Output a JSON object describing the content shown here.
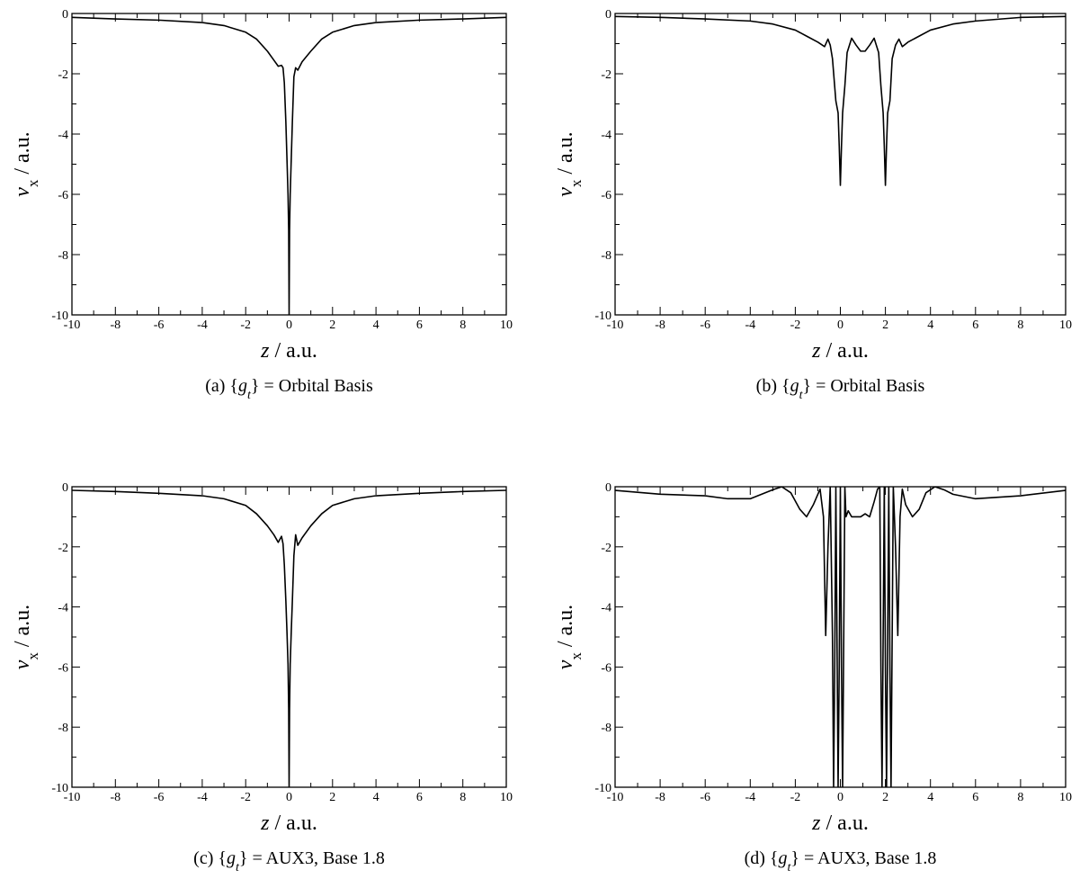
{
  "chart_data": [
    {
      "type": "line",
      "caption": "(a) {g_t} = Orbital Basis",
      "xlabel": "z / a.u.",
      "ylabel": "v_x / a.u.",
      "xlim": [
        -10,
        10
      ],
      "ylim": [
        -10,
        0
      ],
      "xticks": [
        "-10",
        "-8",
        "-6",
        "-4",
        "-2",
        "0",
        "2",
        "4",
        "6",
        "8",
        "10"
      ],
      "yticks": [
        "0",
        "-2",
        "-4",
        "-6",
        "-8",
        "-10"
      ],
      "grid": false,
      "series": [
        {
          "x": [
            -10,
            -8,
            -6,
            -4,
            -3,
            -2,
            -1.5,
            -1,
            -0.7,
            -0.5,
            -0.35,
            -0.28,
            -0.22,
            -0.15,
            -0.1,
            -0.05,
            -0.02,
            0,
            0.02,
            0.05,
            0.1,
            0.15,
            0.22,
            0.3,
            0.4,
            0.6,
            1,
            1.5,
            2,
            3,
            4,
            6,
            8,
            10
          ],
          "y": [
            -0.13,
            -0.18,
            -0.22,
            -0.3,
            -0.4,
            -0.62,
            -0.85,
            -1.25,
            -1.55,
            -1.75,
            -1.72,
            -1.8,
            -2.3,
            -3.6,
            -4.8,
            -6,
            -7.2,
            -10,
            -7.2,
            -6,
            -4.8,
            -3.6,
            -2.1,
            -1.8,
            -1.88,
            -1.6,
            -1.25,
            -0.85,
            -0.62,
            -0.4,
            -0.3,
            -0.22,
            -0.18,
            -0.13
          ]
        }
      ]
    },
    {
      "type": "line",
      "caption": "(b) {g_t} = Orbital Basis",
      "xlabel": "z / a.u.",
      "ylabel": "v_x / a.u.",
      "xlim": [
        -10,
        10
      ],
      "ylim": [
        -10,
        0
      ],
      "xticks": [
        "-10",
        "-8",
        "-6",
        "-4",
        "-2",
        "0",
        "2",
        "4",
        "6",
        "8",
        "10"
      ],
      "yticks": [
        "0",
        "-2",
        "-4",
        "-6",
        "-8",
        "-10"
      ],
      "grid": false,
      "series": [
        {
          "x": [
            -10,
            -8,
            -6,
            -4,
            -3,
            -2,
            -1.5,
            -1,
            -0.7,
            -0.55,
            -0.45,
            -0.35,
            -0.2,
            -0.1,
            -0.05,
            0,
            0.05,
            0.1,
            0.2,
            0.3,
            0.5,
            0.7,
            0.9,
            1.1,
            1.3,
            1.5,
            1.7,
            1.8,
            1.9,
            1.95,
            2,
            2.05,
            2.1,
            2.2,
            2.3,
            2.45,
            2.6,
            2.75,
            3,
            3.5,
            4,
            5,
            6,
            8,
            10
          ],
          "y": [
            -0.1,
            -0.13,
            -0.18,
            -0.25,
            -0.35,
            -0.55,
            -0.75,
            -0.95,
            -1.1,
            -0.85,
            -1.05,
            -1.5,
            -2.9,
            -3.3,
            -4.4,
            -5.7,
            -4.4,
            -3.3,
            -2.4,
            -1.3,
            -0.82,
            -1.05,
            -1.25,
            -1.25,
            -1.05,
            -0.82,
            -1.3,
            -2.4,
            -3.3,
            -4.4,
            -5.7,
            -4.4,
            -3.3,
            -2.9,
            -1.5,
            -1.05,
            -0.85,
            -1.1,
            -0.95,
            -0.75,
            -0.55,
            -0.35,
            -0.25,
            -0.13,
            -0.1
          ]
        }
      ]
    },
    {
      "type": "line",
      "caption": "(c) {g_t} = AUX3, Base 1.8",
      "xlabel": "z / a.u.",
      "ylabel": "v_x / a.u.",
      "xlim": [
        -10,
        10
      ],
      "ylim": [
        -10,
        0
      ],
      "xticks": [
        "-10",
        "-8",
        "-6",
        "-4",
        "-2",
        "0",
        "2",
        "4",
        "6",
        "8",
        "10"
      ],
      "yticks": [
        "0",
        "-2",
        "-4",
        "-6",
        "-8",
        "-10"
      ],
      "grid": false,
      "series": [
        {
          "x": [
            -10,
            -8,
            -6,
            -4,
            -3,
            -2,
            -1.5,
            -1,
            -0.7,
            -0.5,
            -0.35,
            -0.28,
            -0.22,
            -0.15,
            -0.1,
            -0.05,
            -0.02,
            0,
            0.02,
            0.05,
            0.1,
            0.15,
            0.22,
            0.3,
            0.4,
            0.6,
            1,
            1.5,
            2,
            3,
            4,
            6,
            8,
            10
          ],
          "y": [
            -0.12,
            -0.16,
            -0.22,
            -0.3,
            -0.4,
            -0.62,
            -0.9,
            -1.3,
            -1.6,
            -1.85,
            -1.65,
            -1.9,
            -2.6,
            -3.8,
            -4.8,
            -5.9,
            -7.4,
            -10,
            -7.4,
            -5.9,
            -4.8,
            -3.8,
            -2.3,
            -1.6,
            -1.95,
            -1.7,
            -1.3,
            -0.9,
            -0.62,
            -0.4,
            -0.3,
            -0.22,
            -0.16,
            -0.12
          ]
        }
      ]
    },
    {
      "type": "line",
      "caption": "(d) {g_t} = AUX3, Base 1.8",
      "xlabel": "z / a.u.",
      "ylabel": "v_x / a.u.",
      "xlim": [
        -10,
        10
      ],
      "ylim": [
        -10,
        0
      ],
      "xticks": [
        "-10",
        "-8",
        "-6",
        "-4",
        "-2",
        "0",
        "2",
        "4",
        "6",
        "8",
        "10"
      ],
      "yticks": [
        "0",
        "-2",
        "-4",
        "-6",
        "-8",
        "-10"
      ],
      "grid": false,
      "series": [
        {
          "x": [
            -10,
            -8,
            -6,
            -5,
            -4,
            -3.5,
            -3,
            -2.6,
            -2.2,
            -1.8,
            -1.5,
            -1.2,
            -0.9,
            -0.75,
            -0.65,
            -0.55,
            -0.45,
            -0.35,
            -0.3,
            -0.25,
            -0.2,
            -0.15,
            -0.1,
            -0.05,
            0,
            0.05,
            0.1,
            0.15,
            0.2,
            0.25,
            0.35,
            0.5,
            0.7,
            0.9,
            1.1,
            1.3,
            1.5,
            1.65,
            1.75,
            1.8,
            1.85,
            1.9,
            1.95,
            2,
            2.05,
            2.1,
            2.15,
            2.2,
            2.25,
            2.3,
            2.35,
            2.45,
            2.55,
            2.65,
            2.75,
            2.9,
            3.2,
            3.5,
            3.8,
            4.2,
            4.6,
            5,
            6,
            8,
            10
          ],
          "y": [
            -0.12,
            -0.25,
            -0.3,
            -0.4,
            -0.4,
            -0.25,
            -0.1,
            0,
            -0.2,
            -0.75,
            -1.0,
            -0.6,
            -0.08,
            -1.0,
            -4.95,
            -2.0,
            0,
            -5,
            -10,
            -6,
            0,
            -5,
            -10,
            -6,
            0,
            -6,
            -10,
            -5,
            0,
            -1.0,
            -0.8,
            -1.0,
            -1.0,
            -1.0,
            -0.9,
            -1.0,
            -0.5,
            -0.08,
            0,
            -6,
            -10,
            -5,
            0,
            -6,
            -10,
            -5,
            0,
            -6,
            -10,
            -5,
            0,
            -2.0,
            -4.95,
            -1.0,
            -0.08,
            -0.6,
            -1.0,
            -0.75,
            -0.2,
            0,
            -0.1,
            -0.25,
            -0.4,
            -0.3,
            -0.12
          ]
        }
      ]
    }
  ]
}
